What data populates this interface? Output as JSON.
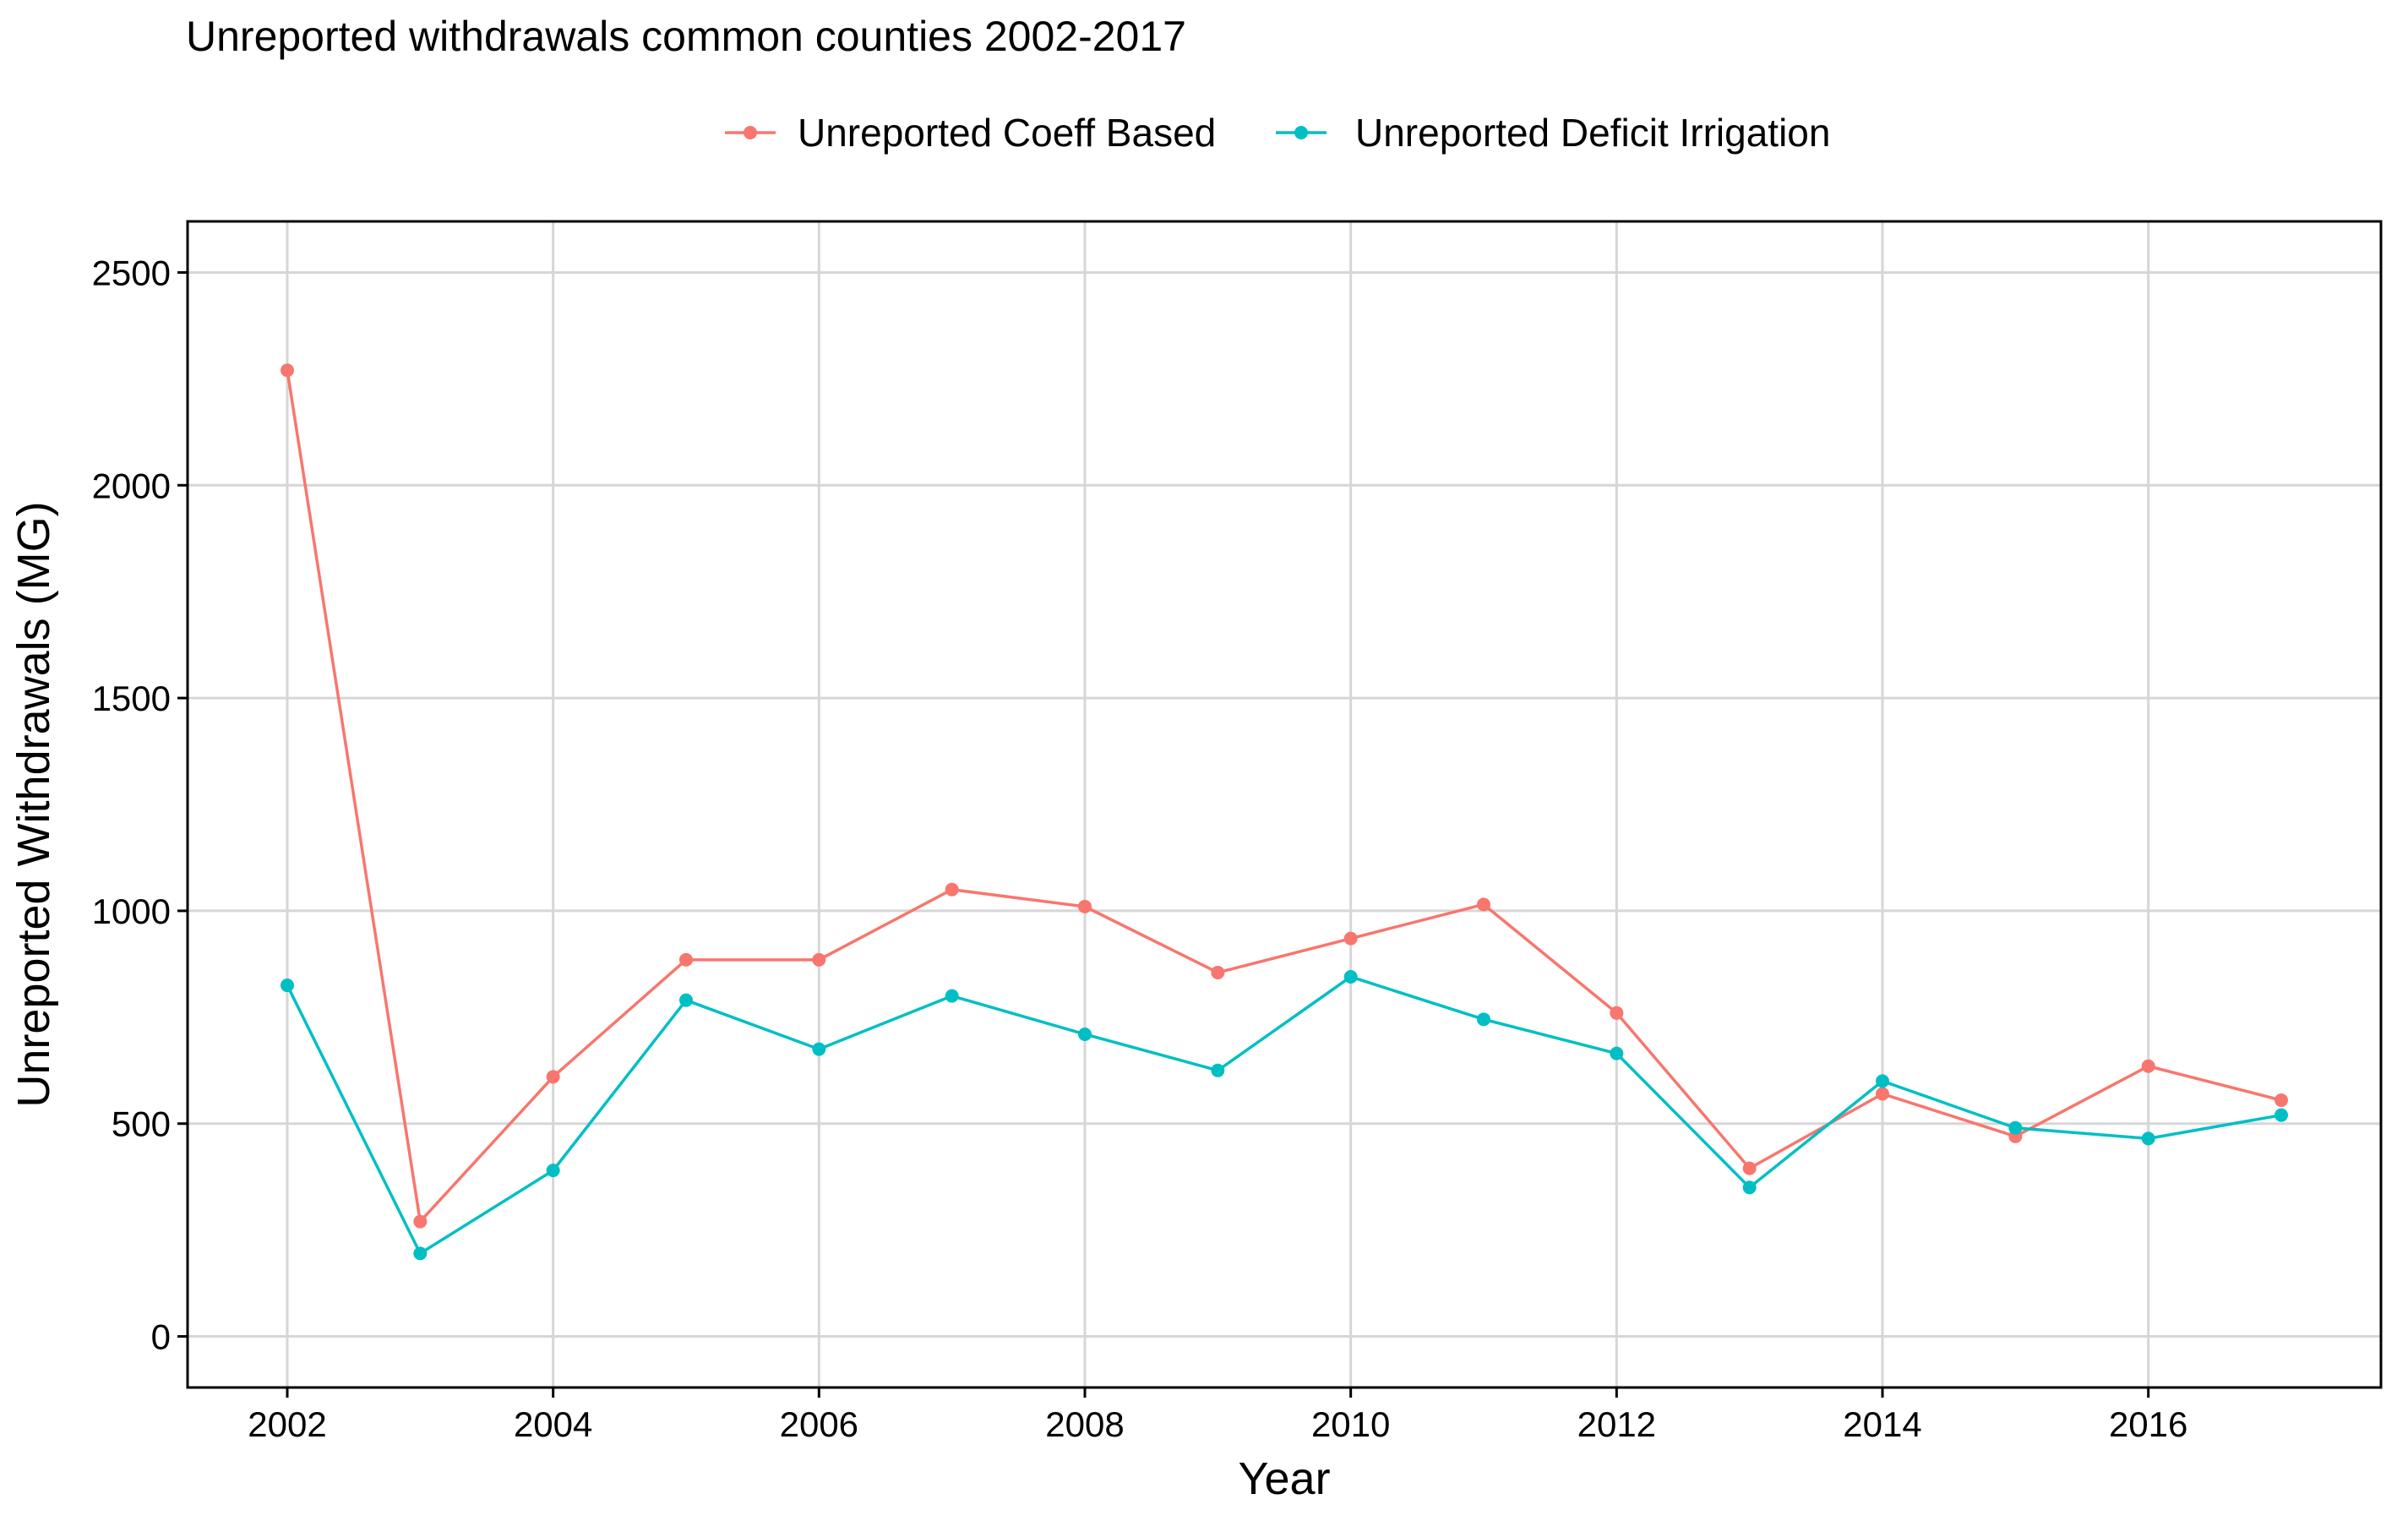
{
  "chart_data": {
    "type": "line",
    "title": "Unreported withdrawals common counties 2002-2017",
    "xlabel": "Year",
    "ylabel": "Unreported Withdrawals (MG)",
    "xlim": [
      2001.25,
      2017.75
    ],
    "ylim": [
      -120,
      2620
    ],
    "x_ticks": [
      2002,
      2004,
      2006,
      2008,
      2010,
      2012,
      2014,
      2016
    ],
    "y_ticks": [
      0,
      500,
      1000,
      1500,
      2000,
      2500
    ],
    "grid": true,
    "legend_position": "top",
    "x": [
      2002,
      2003,
      2004,
      2005,
      2006,
      2007,
      2008,
      2009,
      2010,
      2011,
      2012,
      2013,
      2014,
      2015,
      2016,
      2017
    ],
    "series": [
      {
        "name": "Unreported Coeff Based",
        "color": "#F8766D",
        "values": [
          2270,
          270,
          610,
          885,
          885,
          1050,
          1010,
          855,
          935,
          1015,
          760,
          395,
          570,
          470,
          635,
          555
        ]
      },
      {
        "name": "Unreported Deficit Irrigation",
        "color": "#00BFC4",
        "values": [
          825,
          195,
          390,
          790,
          675,
          800,
          710,
          625,
          845,
          745,
          665,
          350,
          600,
          490,
          465,
          520
        ]
      }
    ]
  }
}
